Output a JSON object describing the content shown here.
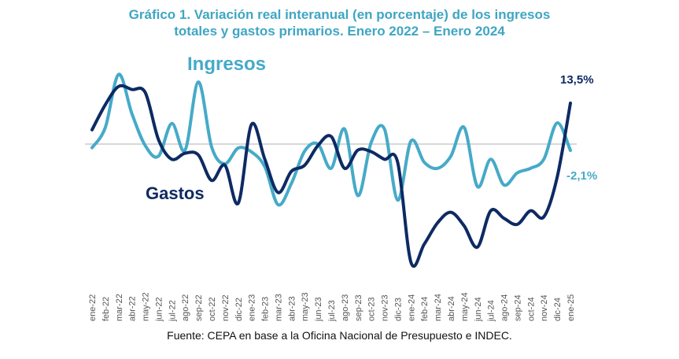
{
  "chart_data": {
    "type": "line",
    "title": "Gráfico 1. Variación real interanual (en porcentaje) de los ingresos totales y gastos primarios. Enero 2022 – Enero 2024",
    "title_line1": "Gráfico 1. Variación real interanual (en porcentaje) de los ingresos",
    "title_line2": "totales y gastos primarios. Enero 2022 – Enero 2024",
    "xlabel": "",
    "ylabel": "",
    "ylim": [
      -42,
      26
    ],
    "grid": false,
    "zero_line": true,
    "legend": "inline-labels",
    "source": "Fuente: CEPA en base a la Oficina Nacional de Presupuesto e INDEC.",
    "categories": [
      "ene-22",
      "feb-22",
      "mar-22",
      "abr-22",
      "may-22",
      "jun-22",
      "jul-22",
      "ago-22",
      "sep-22",
      "oct-22",
      "nov-22",
      "dic-22",
      "ene-23",
      "feb-23",
      "mar-23",
      "abr-23",
      "may-23",
      "jun-23",
      "jul-23",
      "ago-23",
      "sep-23",
      "oct-23",
      "nov-23",
      "dic-23",
      "ene-24",
      "feb-24",
      "mar-24",
      "abr-24",
      "may-24",
      "jun-24",
      "jul-24",
      "ago-24",
      "sep-24",
      "oct-24",
      "nov-24",
      "dic-24",
      "ene-25"
    ],
    "series": [
      {
        "name": "Ingresos",
        "color": "#46aac8",
        "values": [
          -1.2,
          5.5,
          23.0,
          10.0,
          -0.5,
          -4.0,
          6.8,
          -2.0,
          20.5,
          -1.0,
          -6.5,
          -1.3,
          -2.6,
          -7.5,
          -20.0,
          -13.0,
          -2.3,
          0.0,
          -8.0,
          5.0,
          -17.0,
          0.5,
          5.0,
          -18.5,
          1.0,
          -6.0,
          -8.0,
          -4.0,
          5.5,
          -14.0,
          -5.0,
          -13.5,
          -9.5,
          -8.0,
          -5.0,
          7.0,
          -2.1
        ],
        "end_label": "-2,1%"
      },
      {
        "name": "Gastos",
        "color": "#0d2a63",
        "values": [
          4.7,
          13.0,
          19.0,
          18.0,
          17.0,
          1.5,
          -5.0,
          -3.0,
          -3.6,
          -12.0,
          -7.0,
          -19.5,
          6.5,
          -5.0,
          -16.0,
          -9.0,
          -7.0,
          -0.5,
          2.5,
          -8.0,
          -2.0,
          -2.5,
          -5.0,
          -6.0,
          -39.0,
          -33.0,
          -26.0,
          -22.5,
          -27.0,
          -34.0,
          -22.0,
          -24.5,
          -26.5,
          -22.0,
          -24.0,
          -11.0,
          13.5
        ],
        "end_label": "13,5%"
      }
    ]
  }
}
